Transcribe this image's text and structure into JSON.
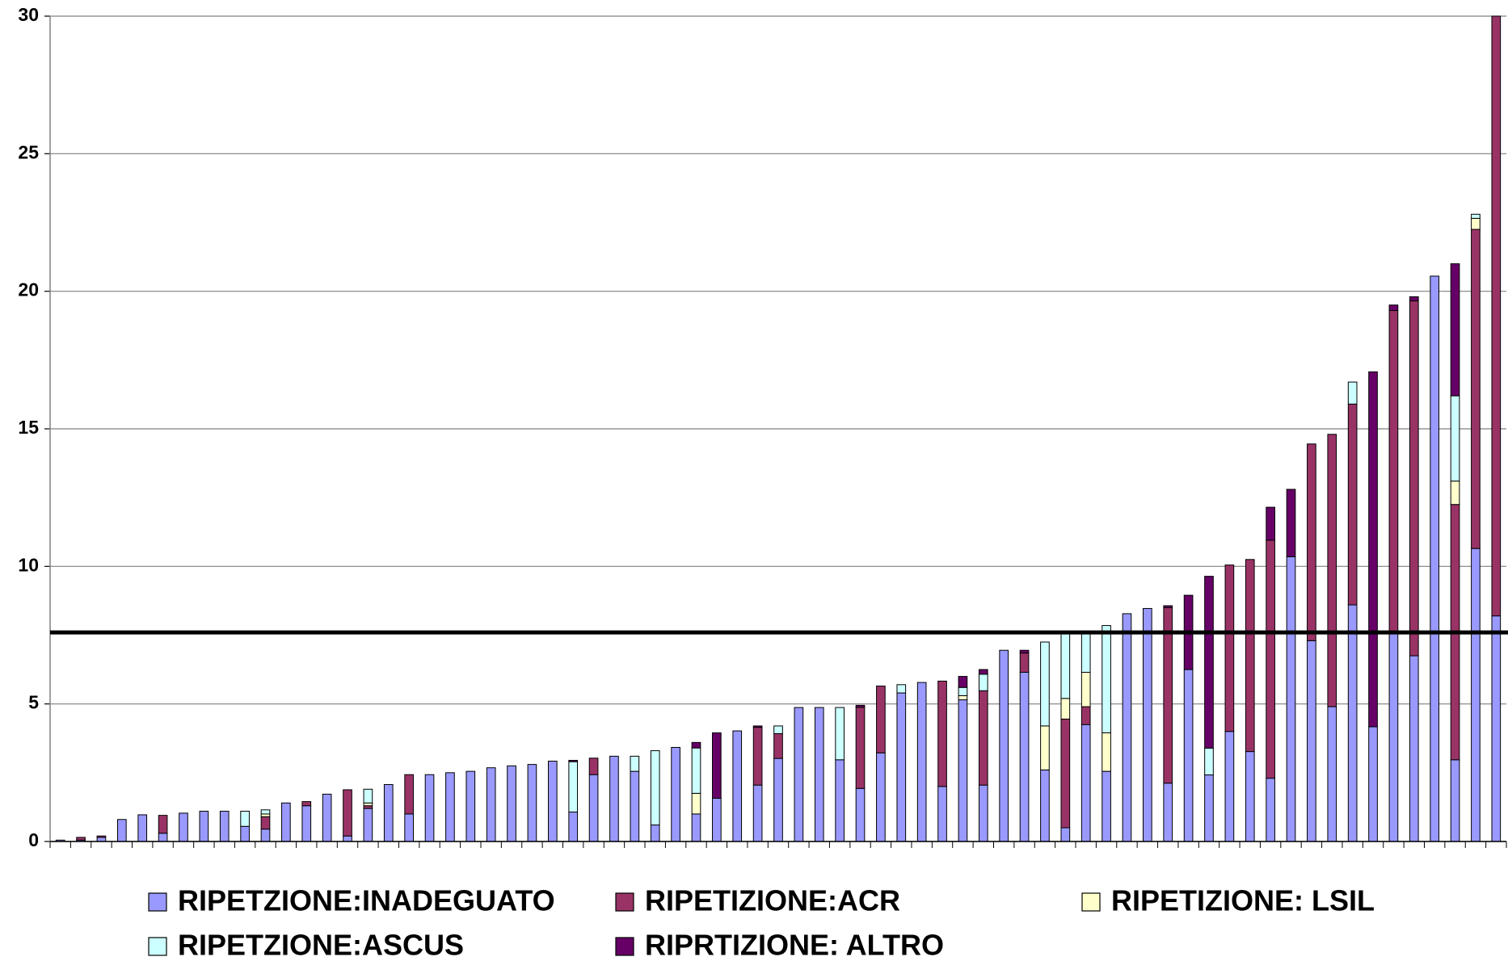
{
  "chart_data": {
    "type": "stacked_bar",
    "categories": [
      null,
      null,
      null,
      null,
      null,
      null,
      null,
      null,
      null,
      null,
      null,
      null,
      null,
      null,
      null,
      null,
      null,
      null,
      null,
      null,
      null,
      null,
      null,
      null,
      null,
      null,
      null,
      null,
      null,
      null,
      null,
      null,
      null,
      null,
      null,
      null,
      null,
      null,
      null,
      null,
      null,
      null,
      null,
      null,
      null,
      null,
      null,
      null,
      null,
      null,
      null,
      null,
      null,
      null,
      null,
      null,
      null,
      null,
      null,
      null,
      null,
      null,
      null,
      null,
      null,
      null,
      null,
      null,
      null,
      null,
      null
    ],
    "series": [
      {
        "name": "RIPETZIONE:INADEGUATO",
        "color": "#9999ff",
        "values": [
          0.05,
          0.05,
          0.15,
          0.8,
          0.97,
          0.3,
          1.03,
          1.1,
          1.1,
          0.55,
          0.45,
          1.4,
          1.3,
          1.72,
          0.2,
          1.2,
          2.07,
          1.0,
          2.43,
          2.5,
          2.55,
          2.68,
          2.75,
          2.8,
          2.92,
          1.07,
          2.43,
          3.1,
          2.55,
          0.6,
          3.42,
          1.0,
          1.57,
          4.02,
          2.05,
          3.02,
          4.87,
          4.87,
          2.97,
          1.93,
          3.22,
          5.4,
          5.78,
          2.0,
          5.15,
          2.05,
          6.95,
          6.15,
          2.6,
          0.5,
          4.25,
          2.55,
          8.28,
          8.47,
          2.12,
          6.25,
          2.42,
          4.0,
          3.27,
          2.3,
          10.35,
          7.3,
          4.9,
          8.6,
          4.17,
          7.6,
          6.75,
          20.55,
          2.97,
          10.65,
          8.2
        ]
      },
      {
        "name": "RIPETIZIONE:ACR",
        "color": "#993366",
        "values": [
          0,
          0.1,
          0.05,
          0,
          0,
          0.65,
          0,
          0,
          0,
          0,
          0.45,
          0,
          0.15,
          0,
          1.68,
          0.1,
          0,
          1.43,
          0,
          0,
          0,
          0,
          0,
          0,
          0,
          0,
          0.6,
          0,
          0,
          0,
          0,
          0,
          0,
          0,
          2.1,
          0.9,
          0,
          0,
          0,
          2.95,
          2.43,
          0,
          0,
          3.83,
          0,
          3.43,
          0,
          0.7,
          0,
          3.95,
          0.65,
          0,
          0,
          0,
          6.38,
          0,
          0,
          6.05,
          6.98,
          8.65,
          0,
          7.15,
          9.9,
          7.3,
          0,
          11.7,
          12.9,
          0,
          9.28,
          11.6,
          21.8
        ]
      },
      {
        "name": "RIPETIZIONE: LSIL",
        "color": "#ffffcc",
        "values": [
          0,
          0,
          0,
          0,
          0,
          0,
          0,
          0,
          0,
          0,
          0.1,
          0,
          0,
          0,
          0,
          0.1,
          0,
          0,
          0,
          0,
          0,
          0,
          0,
          0,
          0,
          0,
          0,
          0,
          0,
          0,
          0,
          0.75,
          0,
          0,
          0,
          0,
          0,
          0,
          0,
          0,
          0,
          0,
          0,
          0,
          0.15,
          0,
          0,
          0,
          1.6,
          0.75,
          1.25,
          1.4,
          0,
          0,
          0,
          0,
          0,
          0,
          0,
          0,
          0,
          0,
          0,
          0,
          0,
          0,
          0,
          0,
          0.85,
          0.4,
          0
        ]
      },
      {
        "name": "RIPETZIONE:ASCUS",
        "color": "#ccffff",
        "values": [
          0,
          0,
          0,
          0,
          0,
          0,
          0,
          0,
          0,
          0.55,
          0.15,
          0,
          0,
          0,
          0,
          0.5,
          0,
          0,
          0,
          0,
          0,
          0,
          0,
          0,
          0,
          1.83,
          0,
          0,
          0.55,
          2.7,
          0,
          1.65,
          0,
          0,
          0,
          0.28,
          0,
          0,
          1.9,
          0,
          0,
          0.3,
          0,
          0,
          0.3,
          0.6,
          0,
          0,
          3.05,
          2.4,
          1.45,
          3.9,
          0,
          0,
          0,
          0,
          0.97,
          0,
          0,
          0,
          0,
          0,
          0,
          0.8,
          0,
          0,
          0,
          0,
          3.1,
          0.15,
          0
        ]
      },
      {
        "name": "RIPRTIZIONE: ALTRO",
        "color": "#660066",
        "values": [
          0,
          0,
          0,
          0,
          0,
          0,
          0,
          0,
          0,
          0,
          0,
          0,
          0,
          0,
          0,
          0,
          0,
          0,
          0,
          0,
          0,
          0,
          0,
          0,
          0,
          0.05,
          0,
          0,
          0,
          0,
          0,
          0.2,
          2.38,
          0,
          0.05,
          0,
          0,
          0,
          0,
          0.07,
          0,
          0,
          0,
          0,
          0.4,
          0.17,
          0,
          0.1,
          0,
          0,
          0,
          0,
          0,
          0,
          0.07,
          2.7,
          6.25,
          0,
          0,
          1.2,
          2.45,
          0,
          0,
          0,
          12.9,
          0.2,
          0.15,
          0,
          4.8,
          0,
          0
        ]
      }
    ],
    "reference_line": 7.6,
    "ylim": [
      0,
      30
    ],
    "yticks": [
      0,
      5,
      10,
      15,
      20,
      25,
      30
    ],
    "grid": true
  }
}
